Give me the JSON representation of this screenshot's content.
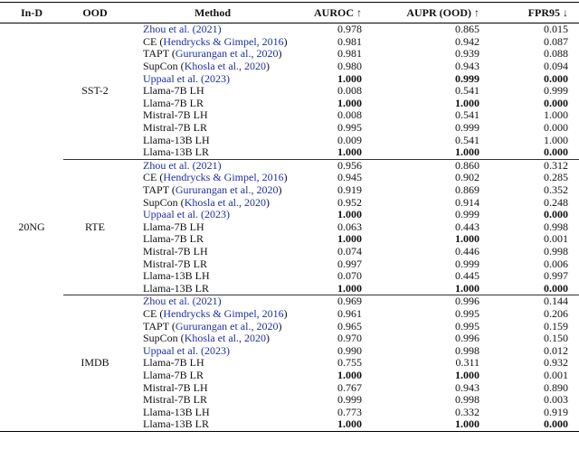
{
  "table": {
    "header": [
      "In-D",
      "OOD",
      "Method",
      "AUROC ↑",
      "AUPR (OOD) ↑",
      "FPR95 ↓"
    ],
    "in_d": "20NG",
    "groups": [
      {
        "ood": "SST-2",
        "rows": [
          {
            "method": [
              {
                "text": "Zhou et al. (2021)",
                "link": true
              }
            ],
            "auroc": "0.978",
            "aupr": "0.865",
            "fpr95": "0.015",
            "bold": []
          },
          {
            "method": [
              {
                "text": "CE (",
                "link": false
              },
              {
                "text": "Hendrycks & Gimpel, 2016",
                "link": true
              },
              {
                "text": ")",
                "link": false
              }
            ],
            "auroc": "0.981",
            "aupr": "0.942",
            "fpr95": "0.087",
            "bold": []
          },
          {
            "method": [
              {
                "text": "TAPT (",
                "link": false
              },
              {
                "text": "Gururangan et al., 2020",
                "link": true
              },
              {
                "text": ")",
                "link": false
              }
            ],
            "auroc": "0.981",
            "aupr": "0.939",
            "fpr95": "0.088",
            "bold": []
          },
          {
            "method": [
              {
                "text": "SupCon (",
                "link": false
              },
              {
                "text": "Khosla et al., 2020",
                "link": true
              },
              {
                "text": ")",
                "link": false
              }
            ],
            "auroc": "0.980",
            "aupr": "0.943",
            "fpr95": "0.094",
            "bold": []
          },
          {
            "method": [
              {
                "text": "Uppaal et al. (2023)",
                "link": true
              }
            ],
            "auroc": "1.000",
            "aupr": "0.999",
            "fpr95": "0.000",
            "bold": [
              "auroc",
              "aupr",
              "fpr95"
            ]
          },
          {
            "method": [
              {
                "text": "Llama-7B LH",
                "link": false
              }
            ],
            "auroc": "0.008",
            "aupr": "0.541",
            "fpr95": "0.999",
            "bold": []
          },
          {
            "method": [
              {
                "text": "Llama-7B LR",
                "link": false
              }
            ],
            "auroc": "1.000",
            "aupr": "1.000",
            "fpr95": "0.000",
            "bold": [
              "auroc",
              "aupr",
              "fpr95"
            ]
          },
          {
            "method": [
              {
                "text": "Mistral-7B LH",
                "link": false
              }
            ],
            "auroc": "0.008",
            "aupr": "0.541",
            "fpr95": "1.000",
            "bold": []
          },
          {
            "method": [
              {
                "text": "Mistral-7B LR",
                "link": false
              }
            ],
            "auroc": "0.995",
            "aupr": "0.999",
            "fpr95": "0.000",
            "bold": []
          },
          {
            "method": [
              {
                "text": "Llama-13B LH",
                "link": false
              }
            ],
            "auroc": "0.009",
            "aupr": "0.541",
            "fpr95": "1.000",
            "bold": []
          },
          {
            "method": [
              {
                "text": "Llama-13B LR",
                "link": false
              }
            ],
            "auroc": "1.000",
            "aupr": "1.000",
            "fpr95": "0.000",
            "bold": [
              "auroc",
              "aupr",
              "fpr95"
            ]
          }
        ]
      },
      {
        "ood": "RTE",
        "rows": [
          {
            "method": [
              {
                "text": "Zhou et al. (2021)",
                "link": true
              }
            ],
            "auroc": "0.956",
            "aupr": "0.860",
            "fpr95": "0.312",
            "bold": []
          },
          {
            "method": [
              {
                "text": "CE (",
                "link": false
              },
              {
                "text": "Hendrycks & Gimpel, 2016",
                "link": true
              },
              {
                "text": ")",
                "link": false
              }
            ],
            "auroc": "0.945",
            "aupr": "0.902",
            "fpr95": "0.285",
            "bold": []
          },
          {
            "method": [
              {
                "text": "TAPT (",
                "link": false
              },
              {
                "text": "Gururangan et al., 2020",
                "link": true
              },
              {
                "text": ")",
                "link": false
              }
            ],
            "auroc": "0.919",
            "aupr": "0.869",
            "fpr95": "0.352",
            "bold": []
          },
          {
            "method": [
              {
                "text": "SupCon (",
                "link": false
              },
              {
                "text": "Khosla et al., 2020",
                "link": true
              },
              {
                "text": ")",
                "link": false
              }
            ],
            "auroc": "0.952",
            "aupr": "0.914",
            "fpr95": "0.248",
            "bold": []
          },
          {
            "method": [
              {
                "text": "Uppaal et al. (2023)",
                "link": true
              }
            ],
            "auroc": "1.000",
            "aupr": "0.999",
            "fpr95": "0.000",
            "bold": [
              "auroc",
              "fpr95"
            ]
          },
          {
            "method": [
              {
                "text": "Llama-7B LH",
                "link": false
              }
            ],
            "auroc": "0.063",
            "aupr": "0.443",
            "fpr95": "0.998",
            "bold": []
          },
          {
            "method": [
              {
                "text": "Llama-7B LR",
                "link": false
              }
            ],
            "auroc": "1.000",
            "aupr": "1.000",
            "fpr95": "0.001",
            "bold": [
              "auroc",
              "aupr"
            ]
          },
          {
            "method": [
              {
                "text": "Mistral-7B LH",
                "link": false
              }
            ],
            "auroc": "0.074",
            "aupr": "0.446",
            "fpr95": "0.998",
            "bold": []
          },
          {
            "method": [
              {
                "text": "Mistral-7B LR",
                "link": false
              }
            ],
            "auroc": "0.997",
            "aupr": "0.999",
            "fpr95": "0.006",
            "bold": []
          },
          {
            "method": [
              {
                "text": "Llama-13B LH",
                "link": false
              }
            ],
            "auroc": "0.070",
            "aupr": "0.445",
            "fpr95": "0.997",
            "bold": []
          },
          {
            "method": [
              {
                "text": "Llama-13B LR",
                "link": false
              }
            ],
            "auroc": "1.000",
            "aupr": "1.000",
            "fpr95": "0.000",
            "bold": [
              "auroc",
              "aupr",
              "fpr95"
            ]
          }
        ]
      },
      {
        "ood": "IMDB",
        "rows": [
          {
            "method": [
              {
                "text": "Zhou et al. (2021)",
                "link": true
              }
            ],
            "auroc": "0.969",
            "aupr": "0.996",
            "fpr95": "0.144",
            "bold": []
          },
          {
            "method": [
              {
                "text": "CE (",
                "link": false
              },
              {
                "text": "Hendrycks & Gimpel, 2016",
                "link": true
              },
              {
                "text": ")",
                "link": false
              }
            ],
            "auroc": "0.961",
            "aupr": "0.995",
            "fpr95": "0.206",
            "bold": []
          },
          {
            "method": [
              {
                "text": "TAPT (",
                "link": false
              },
              {
                "text": "Gururangan et al., 2020",
                "link": true
              },
              {
                "text": ")",
                "link": false
              }
            ],
            "auroc": "0.965",
            "aupr": "0.995",
            "fpr95": "0.159",
            "bold": []
          },
          {
            "method": [
              {
                "text": "SupCon (",
                "link": false
              },
              {
                "text": "Khosla et al., 2020",
                "link": true
              },
              {
                "text": ")",
                "link": false
              }
            ],
            "auroc": "0.970",
            "aupr": "0.996",
            "fpr95": "0.150",
            "bold": []
          },
          {
            "method": [
              {
                "text": "Uppaal et al. (2023)",
                "link": true
              }
            ],
            "auroc": "0.990",
            "aupr": "0.998",
            "fpr95": "0.012",
            "bold": []
          },
          {
            "method": [
              {
                "text": "Llama-7B LH",
                "link": false
              }
            ],
            "auroc": "0.755",
            "aupr": "0.311",
            "fpr95": "0.932",
            "bold": []
          },
          {
            "method": [
              {
                "text": "Llama-7B LR",
                "link": false
              }
            ],
            "auroc": "1.000",
            "aupr": "1.000",
            "fpr95": "0.001",
            "bold": [
              "auroc",
              "aupr"
            ]
          },
          {
            "method": [
              {
                "text": "Mistral-7B LH",
                "link": false
              }
            ],
            "auroc": "0.767",
            "aupr": "0.943",
            "fpr95": "0.890",
            "bold": []
          },
          {
            "method": [
              {
                "text": "Mistral-7B LR",
                "link": false
              }
            ],
            "auroc": "0.999",
            "aupr": "0.998",
            "fpr95": "0.003",
            "bold": []
          },
          {
            "method": [
              {
                "text": "Llama-13B LH",
                "link": false
              }
            ],
            "auroc": "0.773",
            "aupr": "0.332",
            "fpr95": "0.919",
            "bold": []
          },
          {
            "method": [
              {
                "text": "Llama-13B LR",
                "link": false
              }
            ],
            "auroc": "1.000",
            "aupr": "1.000",
            "fpr95": "0.000",
            "bold": [
              "auroc",
              "aupr",
              "fpr95"
            ]
          }
        ]
      }
    ]
  }
}
